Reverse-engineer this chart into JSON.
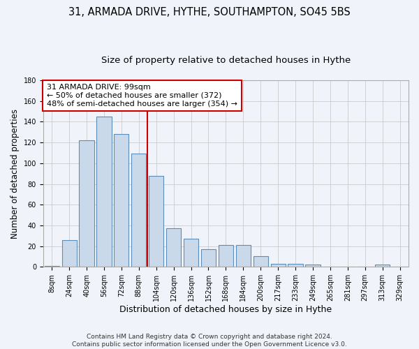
{
  "title1": "31, ARMADA DRIVE, HYTHE, SOUTHAMPTON, SO45 5BS",
  "title2": "Size of property relative to detached houses in Hythe",
  "xlabel": "Distribution of detached houses by size in Hythe",
  "ylabel": "Number of detached properties",
  "categories": [
    "8sqm",
    "24sqm",
    "40sqm",
    "56sqm",
    "72sqm",
    "88sqm",
    "104sqm",
    "120sqm",
    "136sqm",
    "152sqm",
    "168sqm",
    "184sqm",
    "200sqm",
    "217sqm",
    "233sqm",
    "249sqm",
    "265sqm",
    "281sqm",
    "297sqm",
    "313sqm",
    "329sqm"
  ],
  "values": [
    1,
    26,
    122,
    145,
    128,
    109,
    88,
    37,
    27,
    17,
    21,
    21,
    10,
    3,
    3,
    2,
    0,
    0,
    0,
    2,
    0
  ],
  "bar_color": "#c9d9ea",
  "bar_edge_color": "#5b8db8",
  "vline_index": 6,
  "vline_color": "#cc0000",
  "annotation_text": "31 ARMADA DRIVE: 99sqm\n← 50% of detached houses are smaller (372)\n48% of semi-detached houses are larger (354) →",
  "annotation_box_color": "white",
  "annotation_box_edge": "#cc0000",
  "ylim": [
    0,
    180
  ],
  "yticks": [
    0,
    20,
    40,
    60,
    80,
    100,
    120,
    140,
    160,
    180
  ],
  "footer": "Contains HM Land Registry data © Crown copyright and database right 2024.\nContains public sector information licensed under the Open Government Licence v3.0.",
  "background_color": "#f0f4fa",
  "grid_color": "#cccccc",
  "title1_fontsize": 10.5,
  "title2_fontsize": 9.5,
  "xlabel_fontsize": 9,
  "ylabel_fontsize": 8.5,
  "tick_fontsize": 7,
  "annotation_fontsize": 8,
  "footer_fontsize": 6.5
}
